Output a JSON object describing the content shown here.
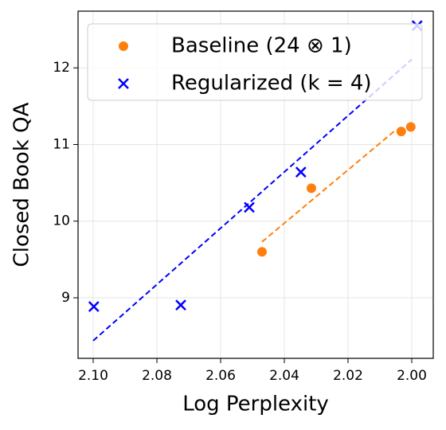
{
  "chart_data": {
    "type": "scatter",
    "x_label": "Log Perplexity",
    "y_label": "Closed Book QA",
    "xlim": [
      2.10475,
      1.99325
    ],
    "ylim": [
      8.21,
      12.74
    ],
    "xticks": [
      {
        "value": 2.1,
        "label": "2.10"
      },
      2.08,
      2.06,
      2.04,
      2.02,
      {
        "value": 2.0,
        "label": "2.00"
      }
    ],
    "yticks": [
      9,
      10,
      11,
      12
    ],
    "grid": true,
    "legend": "upper left",
    "series": [
      {
        "name": "Baseline (24 ⊗ 1)",
        "color": "#ff7f0e",
        "marker": "circle",
        "x": [
          2.047,
          2.0315,
          2.0033,
          2.0003
        ],
        "values": [
          9.6,
          10.43,
          11.17,
          11.23
        ],
        "fit": {
          "x": [
            2.047,
            2.005
          ],
          "values": [
            9.73,
            11.19
          ]
        }
      },
      {
        "name": "Regularized (k = 4)",
        "color": "#0000ff",
        "marker": "x",
        "x": [
          2.0998,
          2.0725,
          2.051,
          2.0348,
          1.9983
        ],
        "values": [
          8.885,
          8.905,
          10.18,
          10.64,
          12.55
        ],
        "fit": {
          "x": [
            2.1,
            2.0
          ],
          "values": [
            8.44,
            12.11
          ]
        }
      }
    ]
  }
}
